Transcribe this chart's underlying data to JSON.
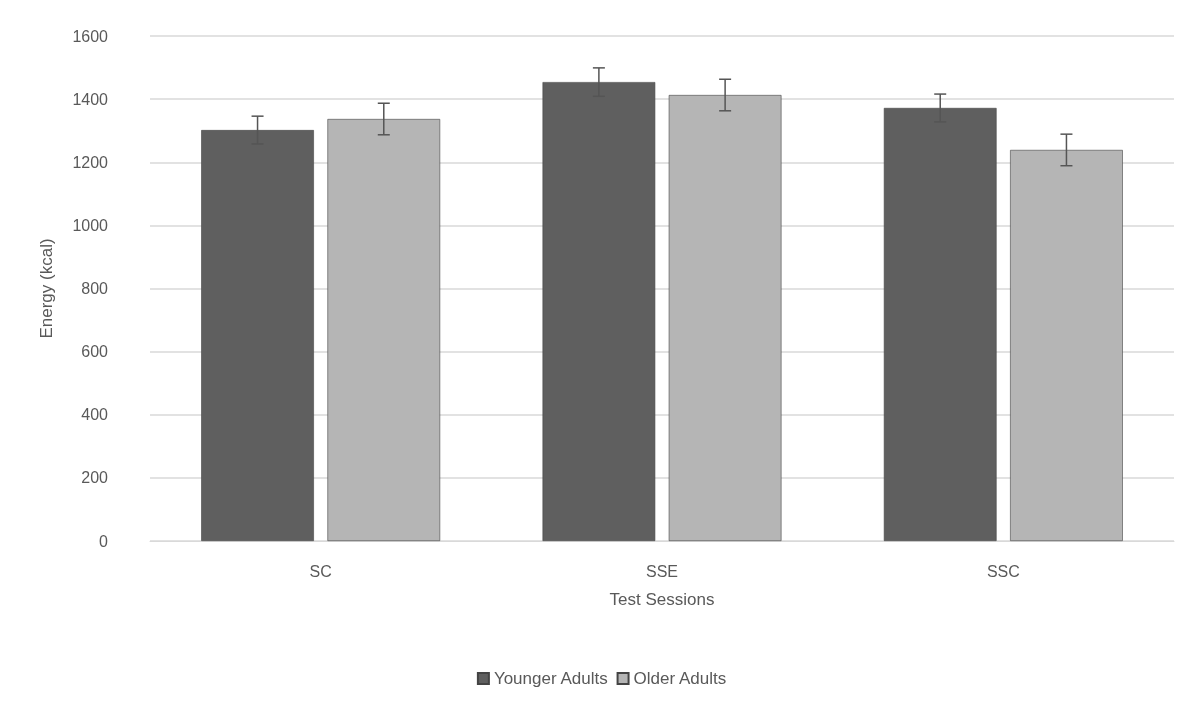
{
  "chart_data": {
    "type": "bar",
    "xlabel": "Test Sessions",
    "ylabel": "Energy (kcal)",
    "categories": [
      "SC",
      "SSE",
      "SSC"
    ],
    "series": [
      {
        "name": "Younger Adults",
        "color": "#5f5f5f",
        "values": [
          1302,
          1454,
          1372
        ],
        "errors": [
          44,
          45,
          44
        ]
      },
      {
        "name": "Older Adults",
        "color": "#b5b5b5",
        "values": [
          1337,
          1413,
          1239
        ],
        "errors": [
          50,
          50,
          50
        ]
      }
    ],
    "ylim": [
      0,
      1600
    ],
    "yticks": [
      0,
      200,
      400,
      600,
      800,
      1000,
      1200,
      1400,
      1600
    ],
    "grid": "y",
    "legend": "bottom"
  }
}
